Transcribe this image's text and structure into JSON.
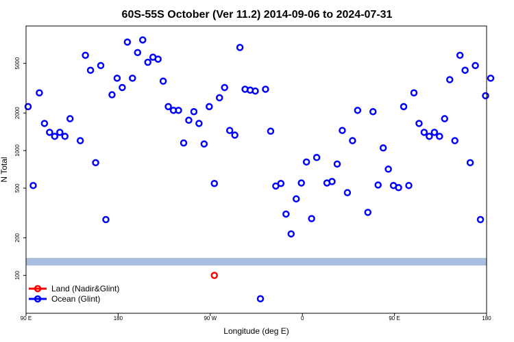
{
  "chart_data": {
    "type": "scatter",
    "title": "60S-55S October (Ver 11.2)   2014-09-06 to 2024-07-31",
    "xlabel": "Longitude (deg E)",
    "ylabel": "N Total",
    "y_scale": "log",
    "ylim": [
      55,
      9000
    ],
    "xticks": [
      {
        "label": "90 E",
        "lon_e": 90
      },
      {
        "label": "180",
        "lon_e": 180
      },
      {
        "label": "90 W",
        "lon_e": 270
      },
      {
        "label": "0",
        "lon_e": 360
      },
      {
        "label": "90 E",
        "lon_e": 450
      },
      {
        "label": "180",
        "lon_e": 540
      }
    ],
    "yticks": [
      {
        "label": "100",
        "value": 100
      },
      {
        "label": "200",
        "value": 200
      },
      {
        "label": "500",
        "value": 500
      },
      {
        "label": "1000",
        "value": 1000
      },
      {
        "label": "2000",
        "value": 2000
      },
      {
        "label": "5000",
        "value": 5000
      }
    ],
    "xlim": [
      90,
      540
    ],
    "band": {
      "color": "#a8bee0",
      "y_range": [
        120,
        138
      ]
    },
    "legend": {
      "placement": "bottom-left"
    },
    "series": [
      {
        "name": "Land (Nadir&Glint)",
        "color": "#ff0000",
        "points": [
          [
            274,
            100
          ]
        ]
      },
      {
        "name": "Ocean (Glint)",
        "color": "#0000ff",
        "points": [
          [
            92,
            2250
          ],
          [
            97,
            525
          ],
          [
            103,
            2900
          ],
          [
            108,
            1650
          ],
          [
            113,
            1400
          ],
          [
            118,
            1300
          ],
          [
            123,
            1400
          ],
          [
            128,
            1300
          ],
          [
            133,
            1800
          ],
          [
            143,
            1200
          ],
          [
            148,
            5800
          ],
          [
            153,
            4400
          ],
          [
            158,
            800
          ],
          [
            163,
            4800
          ],
          [
            168,
            280
          ],
          [
            174,
            2800
          ],
          [
            179,
            3800
          ],
          [
            184,
            3200
          ],
          [
            189,
            7400
          ],
          [
            194,
            3800
          ],
          [
            199,
            6100
          ],
          [
            204,
            7700
          ],
          [
            209,
            5100
          ],
          [
            214,
            5600
          ],
          [
            219,
            5400
          ],
          [
            224,
            3600
          ],
          [
            229,
            2250
          ],
          [
            234,
            2100
          ],
          [
            239,
            2100
          ],
          [
            244,
            1150
          ],
          [
            249,
            1750
          ],
          [
            254,
            2050
          ],
          [
            259,
            1650
          ],
          [
            264,
            1130
          ],
          [
            269,
            2250
          ],
          [
            274,
            545
          ],
          [
            279,
            2650
          ],
          [
            284,
            3200
          ],
          [
            289,
            1450
          ],
          [
            294,
            1330
          ],
          [
            299,
            6700
          ],
          [
            304,
            3100
          ],
          [
            309,
            3050
          ],
          [
            314,
            3000
          ],
          [
            319,
            65
          ],
          [
            324,
            3100
          ],
          [
            329,
            1430
          ],
          [
            334,
            520
          ],
          [
            339,
            545
          ],
          [
            344,
            310
          ],
          [
            349,
            215
          ],
          [
            354,
            410
          ],
          [
            359,
            550
          ],
          [
            364,
            810
          ],
          [
            369,
            285
          ],
          [
            374,
            880
          ],
          [
            384,
            550
          ],
          [
            389,
            565
          ],
          [
            394,
            780
          ],
          [
            399,
            1450
          ],
          [
            404,
            460
          ],
          [
            409,
            1200
          ],
          [
            414,
            2100
          ],
          [
            424,
            320
          ],
          [
            429,
            2050
          ],
          [
            434,
            530
          ],
          [
            439,
            1050
          ],
          [
            444,
            710
          ],
          [
            449,
            525
          ],
          [
            454,
            505
          ],
          [
            459,
            2250
          ],
          [
            464,
            525
          ],
          [
            469,
            2900
          ],
          [
            474,
            1650
          ],
          [
            479,
            1400
          ],
          [
            484,
            1300
          ],
          [
            489,
            1400
          ],
          [
            494,
            1300
          ],
          [
            499,
            1800
          ],
          [
            504,
            3700
          ],
          [
            509,
            1200
          ],
          [
            514,
            5800
          ],
          [
            519,
            4400
          ],
          [
            524,
            800
          ],
          [
            529,
            4800
          ],
          [
            534,
            280
          ],
          [
            539,
            2750
          ],
          [
            544,
            3800
          ]
        ]
      }
    ]
  }
}
